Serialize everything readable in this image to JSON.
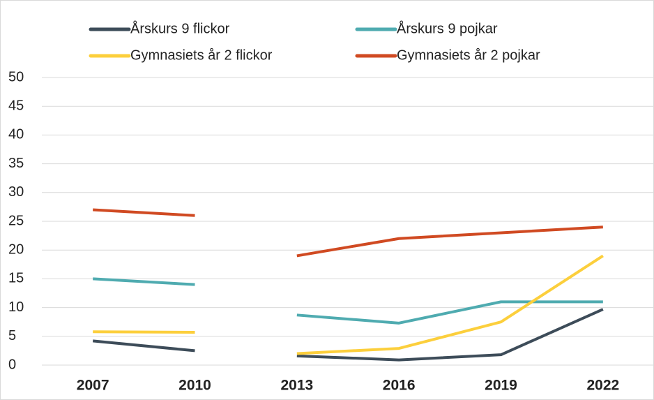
{
  "chart_data": {
    "type": "line",
    "categories": [
      "2007",
      "2010",
      "2013",
      "2016",
      "2019",
      "2022"
    ],
    "series": [
      {
        "name": "Årskurs 9 flickor",
        "color": "#3d4c59",
        "values": [
          4.2,
          2.5,
          1.6,
          0.9,
          1.8,
          9.7
        ]
      },
      {
        "name": "Årskurs 9 pojkar",
        "color": "#4fabb0",
        "values": [
          15,
          14,
          8.7,
          7.3,
          11,
          11
        ]
      },
      {
        "name": "Gymnasiets år 2 flickor",
        "color": "#fccf3c",
        "values": [
          5.8,
          5.7,
          2.0,
          2.9,
          7.5,
          19
        ]
      },
      {
        "name": "Gymnasiets år 2 pojkar",
        "color": "#d04a22",
        "values": [
          27,
          26,
          19,
          22,
          23,
          24
        ]
      }
    ],
    "gap_after_index": 1,
    "ylim": [
      0,
      50
    ],
    "yticks": [
      0,
      5,
      10,
      15,
      20,
      25,
      30,
      35,
      40,
      45,
      50
    ],
    "grid": true,
    "legend": "top"
  }
}
